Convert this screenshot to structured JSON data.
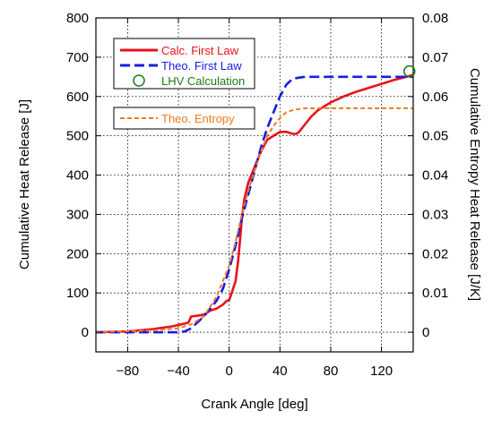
{
  "chart_data": {
    "type": "line",
    "xlabel": "Crank Angle [deg]",
    "ylabel": "Cumulative Heat Release [J]",
    "y2label": "Cumulative Entropy Heat Release [J/K]",
    "xlim": [
      -105,
      145
    ],
    "ylim": [
      -50,
      800
    ],
    "y2lim": [
      -0.005,
      0.08
    ],
    "x_ticks": [
      -80,
      -40,
      0,
      40,
      80,
      120
    ],
    "x_tick_labels": [
      "−80",
      "−40",
      "0",
      "40",
      "80",
      "120"
    ],
    "y_ticks": [
      0,
      100,
      200,
      300,
      400,
      500,
      600,
      700,
      800
    ],
    "y_tick_labels": [
      "0",
      "100",
      "200",
      "300",
      "400",
      "500",
      "600",
      "700",
      "800"
    ],
    "y2_ticks": [
      0,
      0.01,
      0.02,
      0.03,
      0.04,
      0.05,
      0.06,
      0.07,
      0.08
    ],
    "y2_tick_labels": [
      "0",
      "0.01",
      "0.02",
      "0.03",
      "0.04",
      "0.05",
      "0.06",
      "0.07",
      "0.08"
    ],
    "grid": true,
    "legend_position": "top-left",
    "series": [
      {
        "name": "Calc. First Law",
        "axis": "left",
        "color": "#e8111b",
        "style": "solid",
        "x": [
          -105,
          -80,
          -60,
          -45,
          -35,
          -32,
          -30,
          -25,
          -20,
          -15,
          -10,
          -5,
          -2,
          0,
          2,
          5,
          7,
          9,
          10,
          12,
          15,
          20,
          25,
          30,
          35,
          40,
          45,
          50,
          53,
          55,
          60,
          65,
          70,
          80,
          90,
          100,
          110,
          120,
          130,
          140,
          145
        ],
        "y": [
          0,
          2,
          8,
          15,
          22,
          25,
          40,
          42,
          45,
          55,
          60,
          70,
          80,
          82,
          100,
          130,
          180,
          250,
          290,
          340,
          380,
          420,
          460,
          490,
          500,
          510,
          510,
          505,
          505,
          510,
          530,
          550,
          565,
          585,
          600,
          612,
          622,
          632,
          642,
          650,
          655
        ]
      },
      {
        "name": "Theo. First Law",
        "axis": "left",
        "color": "#1a1ae6",
        "style": "dash",
        "x": [
          -105,
          -60,
          -40,
          -35,
          -30,
          -20,
          -10,
          -5,
          0,
          5,
          10,
          15,
          20,
          25,
          30,
          35,
          40,
          45,
          50,
          55,
          60,
          80,
          100,
          120,
          140,
          145
        ],
        "y": [
          0,
          0,
          0,
          2,
          10,
          40,
          80,
          110,
          160,
          220,
          290,
          350,
          410,
          470,
          520,
          560,
          600,
          630,
          645,
          648,
          650,
          650,
          650,
          650,
          650,
          650
        ]
      },
      {
        "name": "LHV Calculation",
        "axis": "left",
        "color": "#1a7a1a",
        "style": "marker",
        "x": [
          142
        ],
        "y": [
          664
        ]
      },
      {
        "name": "Theo. Entropy",
        "axis": "right",
        "color": "#f07a1e",
        "style": "dash",
        "x": [
          -105,
          -60,
          -40,
          -30,
          -20,
          -10,
          0,
          5,
          10,
          15,
          20,
          25,
          30,
          35,
          40,
          45,
          50,
          55,
          60,
          80,
          100,
          120,
          145
        ],
        "y": [
          0,
          0.0005,
          0.001,
          0.002,
          0.004,
          0.009,
          0.017,
          0.023,
          0.03,
          0.036,
          0.041,
          0.046,
          0.05,
          0.0525,
          0.0545,
          0.056,
          0.0565,
          0.0568,
          0.057,
          0.057,
          0.057,
          0.057,
          0.057
        ]
      }
    ]
  }
}
